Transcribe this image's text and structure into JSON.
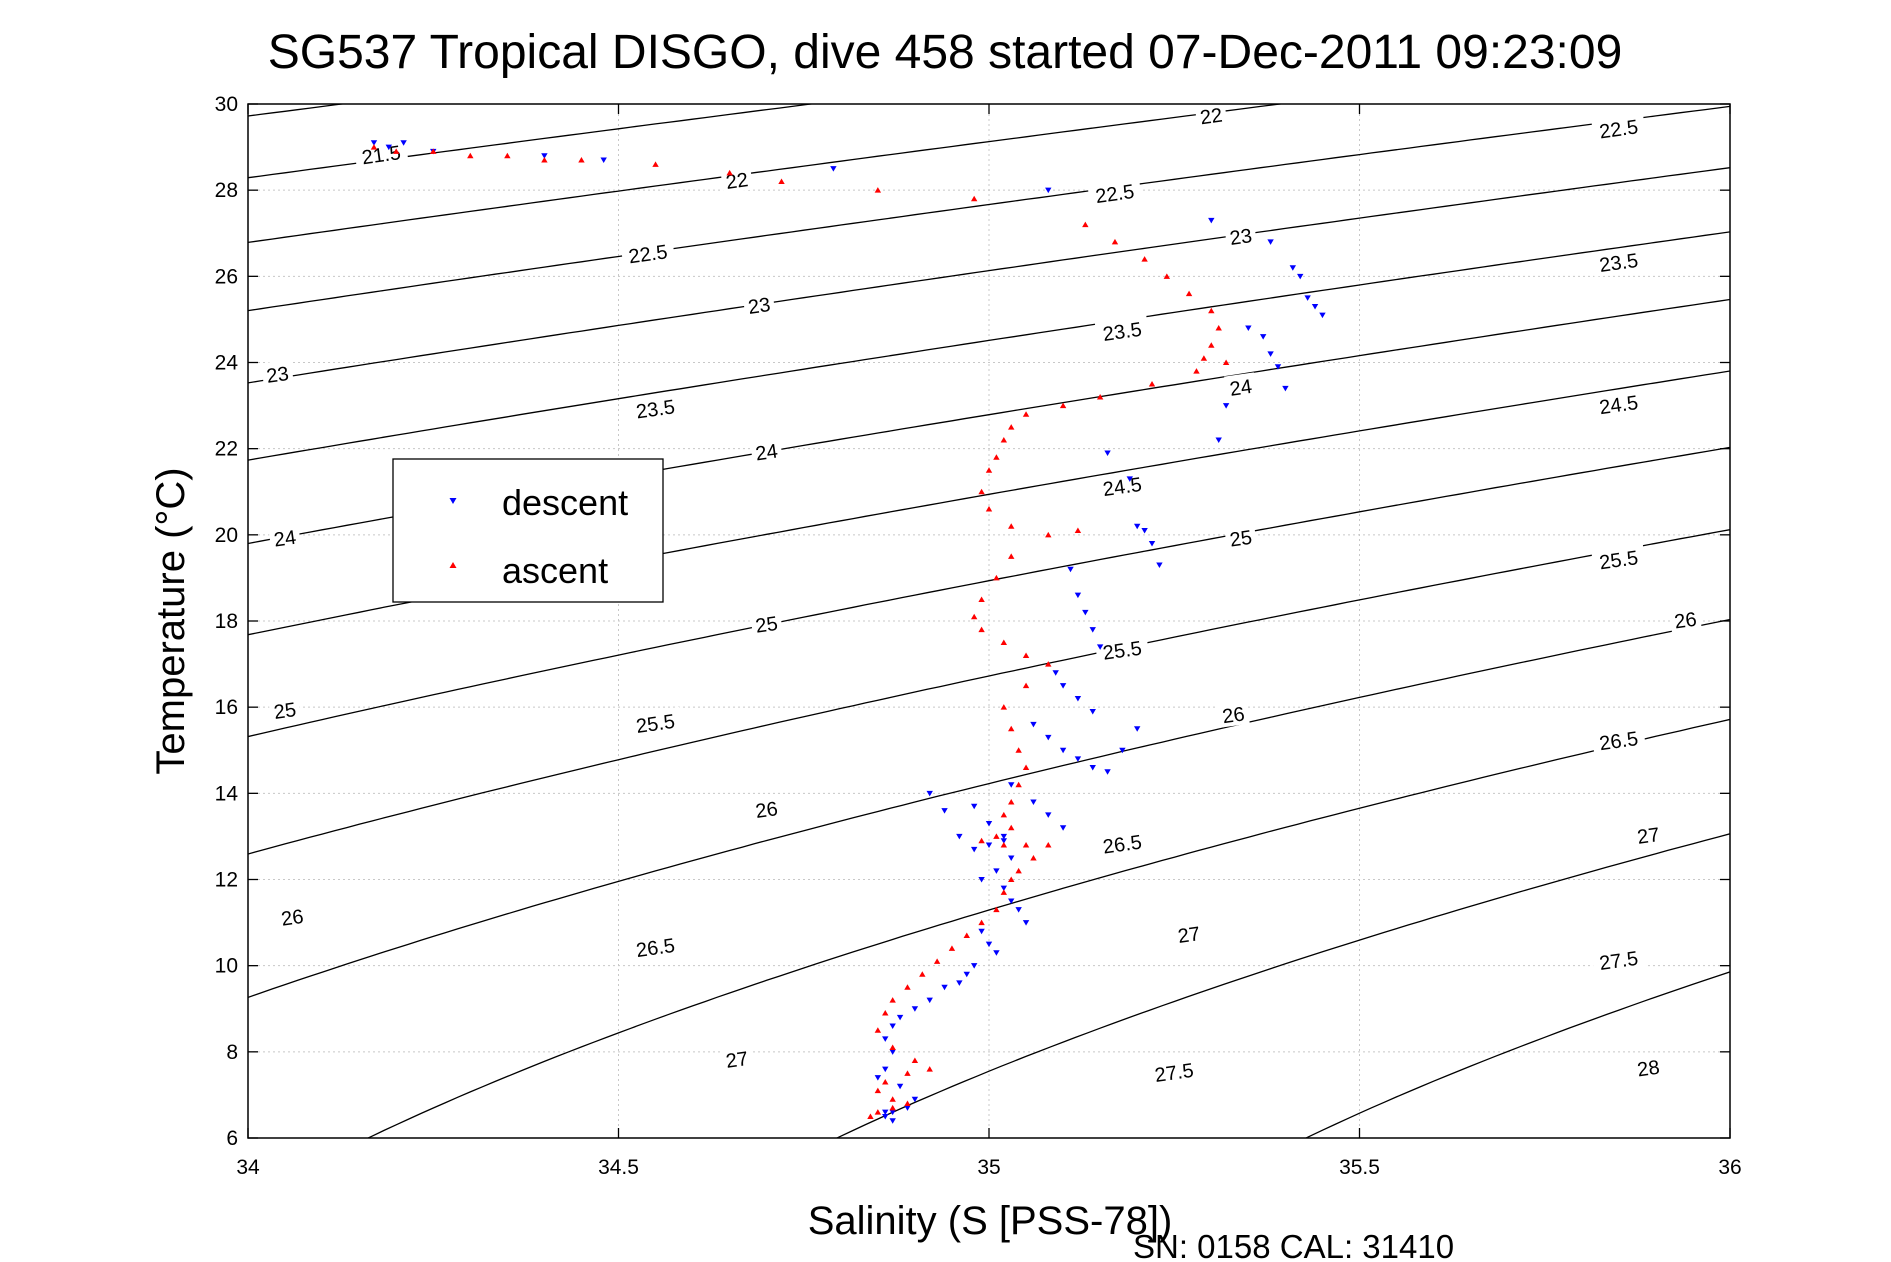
{
  "title": "SG537 Tropical DISGO, dive 458 started 07-Dec-2011 09:23:09",
  "footer": "SN: 0158  CAL: 31410",
  "chart_data": {
    "type": "scatter",
    "title": "SG537 Tropical DISGO, dive 458 started 07-Dec-2011 09:23:09",
    "xlabel": "Salinity (S [PSS-78])",
    "ylabel": "Temperature (°C)",
    "xlim": [
      34,
      36
    ],
    "ylim": [
      6,
      30
    ],
    "xticks": [
      34,
      34.5,
      35,
      35.5,
      36
    ],
    "yticks": [
      6,
      8,
      10,
      12,
      14,
      16,
      18,
      20,
      22,
      24,
      26,
      28,
      30
    ],
    "grid": true,
    "legend": {
      "location": "left-middle",
      "entries": [
        "descent",
        "ascent"
      ]
    },
    "colors": {
      "descent": "#0000ff",
      "ascent": "#ff0000",
      "contour": "#000000"
    },
    "contours": {
      "name": "sigma-theta isopycnals",
      "levels": [
        21.5,
        22,
        22.5,
        23,
        23.5,
        24,
        24.5,
        25,
        25.5,
        26,
        26.5,
        27,
        27.5,
        28
      ],
      "labels": [
        {
          "text": "21.5",
          "s": 34.18,
          "t": 28.8
        },
        {
          "text": "22",
          "s": 34.66,
          "t": 28.2
        },
        {
          "text": "22.5",
          "s": 34.54,
          "t": 26.5
        },
        {
          "text": "23",
          "s": 34.04,
          "t": 23.7
        },
        {
          "text": "23",
          "s": 34.69,
          "t": 25.3
        },
        {
          "text": "24",
          "s": 34.05,
          "t": 19.9
        },
        {
          "text": "23.5",
          "s": 34.55,
          "t": 22.9
        },
        {
          "text": "24",
          "s": 34.7,
          "t": 21.9
        },
        {
          "text": "25",
          "s": 34.05,
          "t": 15.9
        },
        {
          "text": "25",
          "s": 34.7,
          "t": 17.9
        },
        {
          "text": "26",
          "s": 34.06,
          "t": 11.1
        },
        {
          "text": "25.5",
          "s": 34.55,
          "t": 15.6
        },
        {
          "text": "26",
          "s": 34.7,
          "t": 13.6
        },
        {
          "text": "26.5",
          "s": 34.55,
          "t": 10.4
        },
        {
          "text": "27",
          "s": 34.66,
          "t": 7.8
        },
        {
          "text": "22",
          "s": 35.3,
          "t": 29.7
        },
        {
          "text": "22.5",
          "s": 35.17,
          "t": 27.9
        },
        {
          "text": "23",
          "s": 35.34,
          "t": 26.9
        },
        {
          "text": "23.5",
          "s": 35.18,
          "t": 24.7
        },
        {
          "text": "24",
          "s": 35.34,
          "t": 23.4
        },
        {
          "text": "24.5",
          "s": 35.18,
          "t": 21.1
        },
        {
          "text": "25",
          "s": 35.34,
          "t": 19.9
        },
        {
          "text": "25.5",
          "s": 35.18,
          "t": 17.3
        },
        {
          "text": "26",
          "s": 35.33,
          "t": 15.8
        },
        {
          "text": "26.5",
          "s": 35.18,
          "t": 12.8
        },
        {
          "text": "27",
          "s": 35.27,
          "t": 10.7
        },
        {
          "text": "27.5",
          "s": 35.25,
          "t": 7.5
        },
        {
          "text": "22.5",
          "s": 35.85,
          "t": 29.4
        },
        {
          "text": "23.5",
          "s": 35.85,
          "t": 26.3
        },
        {
          "text": "24.5",
          "s": 35.85,
          "t": 23.0
        },
        {
          "text": "25.5",
          "s": 35.85,
          "t": 19.4
        },
        {
          "text": "26",
          "s": 35.94,
          "t": 18.0
        },
        {
          "text": "26.5",
          "s": 35.85,
          "t": 15.2
        },
        {
          "text": "27",
          "s": 35.89,
          "t": 13.0
        },
        {
          "text": "27.5",
          "s": 35.85,
          "t": 10.1
        },
        {
          "text": "28",
          "s": 35.89,
          "t": 7.6
        }
      ]
    },
    "series": [
      {
        "name": "descent",
        "marker": "triangle-down",
        "s": [
          34.17,
          34.19,
          34.21,
          34.25,
          34.4,
          34.48,
          34.79,
          35.08,
          35.3,
          35.38,
          35.41,
          35.42,
          35.43,
          35.44,
          35.45,
          35.35,
          35.37,
          35.38,
          35.39,
          35.4,
          35.32,
          35.31,
          35.16,
          35.19,
          35.2,
          35.21,
          35.22,
          35.23,
          35.11,
          35.12,
          35.13,
          35.14,
          35.15,
          35.09,
          35.1,
          35.12,
          35.14,
          35.06,
          35.08,
          35.1,
          35.12,
          35.14,
          35.16,
          35.18,
          35.2,
          35.03,
          35.06,
          35.08,
          35.1,
          35.02,
          35.0,
          34.98,
          34.96,
          34.94,
          34.92,
          34.98,
          35.0,
          35.02,
          35.03,
          35.01,
          34.99,
          35.02,
          35.03,
          35.04,
          35.05,
          34.99,
          35.0,
          35.01,
          34.98,
          34.97,
          34.96,
          34.94,
          34.92,
          34.9,
          34.88,
          34.87,
          34.86,
          34.87,
          34.86,
          34.85,
          34.88,
          34.9,
          34.89,
          34.87,
          34.86,
          34.87,
          34.86
        ],
        "t": [
          29.1,
          29.0,
          29.1,
          28.9,
          28.8,
          28.7,
          28.5,
          28.0,
          27.3,
          26.8,
          26.2,
          26.0,
          25.5,
          25.3,
          25.1,
          24.8,
          24.6,
          24.2,
          23.9,
          23.4,
          23.0,
          22.2,
          21.9,
          21.3,
          20.2,
          20.1,
          19.8,
          19.3,
          19.2,
          18.6,
          18.2,
          17.8,
          17.4,
          16.8,
          16.5,
          16.2,
          15.9,
          15.6,
          15.3,
          15.0,
          14.8,
          14.6,
          14.5,
          15.0,
          15.5,
          14.2,
          13.8,
          13.5,
          13.2,
          13.0,
          12.8,
          12.7,
          13.0,
          13.6,
          14.0,
          13.7,
          13.3,
          12.9,
          12.5,
          12.2,
          12.0,
          11.8,
          11.5,
          11.3,
          11.0,
          10.8,
          10.5,
          10.3,
          10.0,
          9.8,
          9.6,
          9.5,
          9.2,
          9.0,
          8.8,
          8.6,
          8.3,
          8.0,
          7.6,
          7.4,
          7.2,
          6.9,
          6.7,
          6.6,
          6.5,
          6.4,
          6.6
        ]
      },
      {
        "name": "ascent",
        "marker": "triangle-up",
        "s": [
          34.17,
          34.2,
          34.25,
          34.3,
          34.35,
          34.4,
          34.45,
          34.55,
          34.65,
          34.72,
          34.85,
          34.98,
          35.13,
          35.17,
          35.21,
          35.24,
          35.27,
          35.3,
          35.31,
          35.3,
          35.29,
          35.32,
          35.28,
          35.22,
          35.15,
          35.1,
          35.05,
          35.03,
          35.02,
          35.01,
          35.0,
          34.99,
          35.0,
          35.03,
          35.08,
          35.12,
          35.03,
          35.01,
          34.99,
          34.98,
          34.99,
          35.02,
          35.05,
          35.08,
          35.05,
          35.02,
          35.03,
          35.04,
          35.05,
          35.04,
          35.03,
          35.02,
          35.03,
          35.01,
          34.99,
          35.02,
          35.05,
          35.08,
          35.06,
          35.04,
          35.03,
          35.02,
          35.01,
          34.99,
          34.97,
          34.95,
          34.93,
          34.91,
          34.89,
          34.87,
          34.86,
          34.85,
          34.87,
          34.9,
          34.92,
          34.89,
          34.86,
          34.85,
          34.87,
          34.89,
          34.87,
          34.85,
          34.84
        ],
        "t": [
          29.0,
          28.9,
          28.9,
          28.8,
          28.8,
          28.7,
          28.7,
          28.6,
          28.4,
          28.2,
          28.0,
          27.8,
          27.2,
          26.8,
          26.4,
          26.0,
          25.6,
          25.2,
          24.8,
          24.4,
          24.1,
          24.0,
          23.8,
          23.5,
          23.2,
          23.0,
          22.8,
          22.5,
          22.2,
          21.8,
          21.5,
          21.0,
          20.6,
          20.2,
          20.0,
          20.1,
          19.5,
          19.0,
          18.5,
          18.1,
          17.8,
          17.5,
          17.2,
          17.0,
          16.5,
          16.0,
          15.5,
          15.0,
          14.6,
          14.2,
          13.8,
          13.5,
          13.2,
          13.0,
          12.9,
          12.8,
          12.8,
          12.8,
          12.5,
          12.2,
          12.0,
          11.7,
          11.3,
          11.0,
          10.7,
          10.4,
          10.1,
          9.8,
          9.5,
          9.2,
          8.9,
          8.5,
          8.1,
          7.8,
          7.6,
          7.5,
          7.3,
          7.1,
          6.9,
          6.8,
          6.7,
          6.6,
          6.5
        ]
      }
    ]
  }
}
